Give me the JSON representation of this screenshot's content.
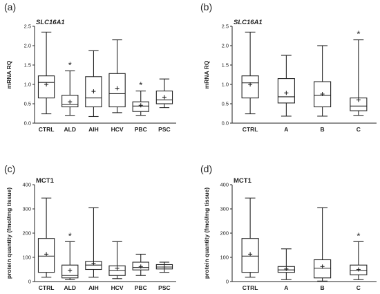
{
  "figure": {
    "background": "#ffffff",
    "ink": "#222222"
  },
  "chart_data": [
    {
      "panel": "(a)",
      "type": "box",
      "title": "SLC16A1",
      "title_italic": true,
      "xlabel": "",
      "ylabel": "mRNA RQ",
      "ylim": [
        0,
        2.5
      ],
      "yticks": [
        "0.0",
        "0.5",
        "1.0",
        "1.5",
        "2.0",
        "2.5"
      ],
      "yticks_values": [
        0,
        0.5,
        1.0,
        1.5,
        2.0,
        2.5
      ],
      "categories": [
        "CTRL",
        "ALD",
        "AIH",
        "HCV",
        "PBC",
        "PSC"
      ],
      "boxes": [
        {
          "min": 0.24,
          "q1": 0.65,
          "median": 1.05,
          "q3": 1.22,
          "max": 2.35,
          "mean": 1.0,
          "significant": false
        },
        {
          "min": 0.2,
          "q1": 0.42,
          "median": 0.48,
          "q3": 0.72,
          "max": 1.35,
          "mean": 0.55,
          "significant": true
        },
        {
          "min": 0.17,
          "q1": 0.42,
          "median": 0.65,
          "q3": 1.2,
          "max": 1.87,
          "mean": 0.82,
          "significant": false
        },
        {
          "min": 0.27,
          "q1": 0.42,
          "median": 0.76,
          "q3": 1.28,
          "max": 2.15,
          "mean": 0.9,
          "significant": false
        },
        {
          "min": 0.2,
          "q1": 0.3,
          "median": 0.44,
          "q3": 0.55,
          "max": 0.83,
          "mean": 0.46,
          "significant": true
        },
        {
          "min": 0.4,
          "q1": 0.5,
          "median": 0.6,
          "q3": 0.83,
          "max": 1.14,
          "mean": 0.67,
          "significant": false
        }
      ]
    },
    {
      "panel": "(b)",
      "type": "box",
      "title": "SLC16A1",
      "title_italic": true,
      "xlabel": "",
      "ylabel": "mRNA RQ",
      "ylim": [
        0,
        2.5
      ],
      "yticks": [
        "0.0",
        "0.5",
        "1.0",
        "1.5",
        "2.0",
        "2.5"
      ],
      "yticks_values": [
        0,
        0.5,
        1.0,
        1.5,
        2.0,
        2.5
      ],
      "categories": [
        "CTRL",
        "A",
        "B",
        "C"
      ],
      "boxes": [
        {
          "min": 0.24,
          "q1": 0.65,
          "median": 1.04,
          "q3": 1.22,
          "max": 2.35,
          "mean": 1.0,
          "significant": false
        },
        {
          "min": 0.18,
          "q1": 0.52,
          "median": 0.68,
          "q3": 1.15,
          "max": 1.75,
          "mean": 0.78,
          "significant": false
        },
        {
          "min": 0.18,
          "q1": 0.42,
          "median": 0.72,
          "q3": 1.07,
          "max": 2.0,
          "mean": 0.75,
          "significant": false
        },
        {
          "min": 0.2,
          "q1": 0.32,
          "median": 0.44,
          "q3": 0.65,
          "max": 2.15,
          "mean": 0.6,
          "significant": true
        }
      ]
    },
    {
      "panel": "(c)",
      "type": "box",
      "title": "MCT1",
      "title_italic": false,
      "xlabel": "",
      "ylabel": "protein quantity (fmol/mg tissue)",
      "ylim": [
        0,
        400
      ],
      "yticks": [
        "0",
        "100",
        "200",
        "300",
        "400"
      ],
      "yticks_values": [
        0,
        100,
        200,
        300,
        400
      ],
      "categories": [
        "CTRL",
        "ALD",
        "AIH",
        "HCV",
        "PBC",
        "PSC"
      ],
      "boxes": [
        {
          "min": 18,
          "q1": 38,
          "median": 105,
          "q3": 178,
          "max": 345,
          "mean": 113,
          "significant": false
        },
        {
          "min": 8,
          "q1": 15,
          "median": 25,
          "q3": 68,
          "max": 165,
          "mean": 46,
          "significant": true
        },
        {
          "min": 18,
          "q1": 50,
          "median": 68,
          "q3": 83,
          "max": 305,
          "mean": 75,
          "significant": false
        },
        {
          "min": 12,
          "q1": 25,
          "median": 45,
          "q3": 65,
          "max": 165,
          "mean": 55,
          "significant": false
        },
        {
          "min": 25,
          "q1": 48,
          "median": 58,
          "q3": 80,
          "max": 113,
          "mean": 62,
          "significant": false
        },
        {
          "min": 38,
          "q1": 52,
          "median": 60,
          "q3": 70,
          "max": 80,
          "mean": 60,
          "significant": false
        }
      ]
    },
    {
      "panel": "(d)",
      "type": "box",
      "title": "MCT1",
      "title_italic": false,
      "xlabel": "",
      "ylabel": "protein quantity (fmol/mg tissue)",
      "ylim": [
        0,
        400
      ],
      "yticks": [
        "0",
        "100",
        "200",
        "300",
        "400"
      ],
      "yticks_values": [
        0,
        100,
        200,
        300,
        400
      ],
      "categories": [
        "CTRL",
        "A",
        "B",
        "C"
      ],
      "boxes": [
        {
          "min": 18,
          "q1": 38,
          "median": 105,
          "q3": 178,
          "max": 345,
          "mean": 113,
          "significant": false
        },
        {
          "min": 8,
          "q1": 38,
          "median": 48,
          "q3": 62,
          "max": 135,
          "mean": 52,
          "significant": false
        },
        {
          "min": 2,
          "q1": 15,
          "median": 55,
          "q3": 90,
          "max": 305,
          "mean": 62,
          "significant": false
        },
        {
          "min": 8,
          "q1": 28,
          "median": 45,
          "q3": 68,
          "max": 165,
          "mean": 50,
          "significant": true
        }
      ]
    }
  ]
}
